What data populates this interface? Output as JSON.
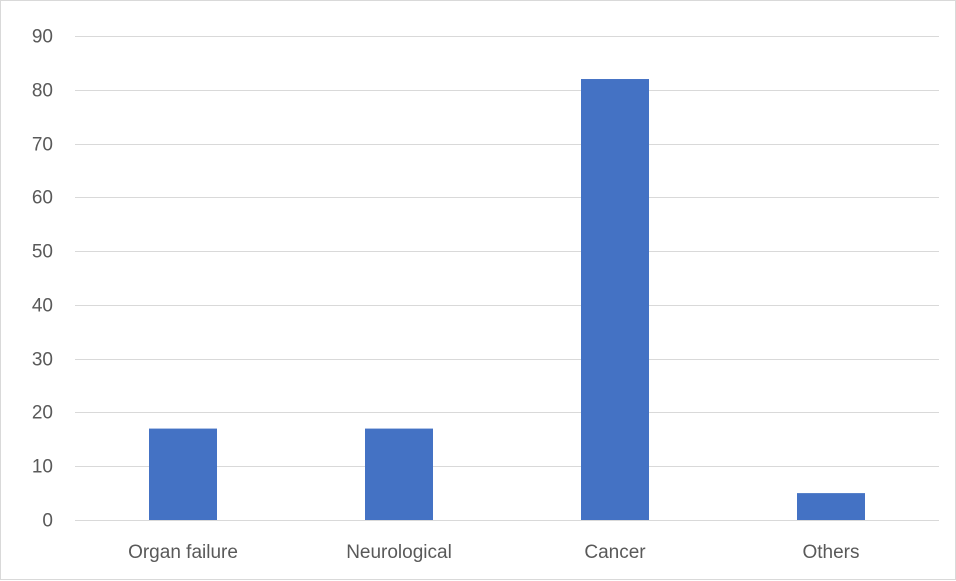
{
  "chart_data": {
    "type": "bar",
    "categories": [
      "Organ failure",
      "Neurological",
      "Cancer",
      "Others"
    ],
    "values": [
      17,
      17,
      82,
      5
    ],
    "ylim": [
      0,
      90
    ],
    "yticks": [
      0,
      10,
      20,
      30,
      40,
      50,
      60,
      70,
      80,
      90
    ],
    "ytick_labels": [
      "0",
      "10",
      "20",
      "30",
      "40",
      "50",
      "60",
      "70",
      "80",
      "90"
    ],
    "grid": true,
    "legend": "none",
    "bar_color": "#4472c4",
    "gridline_color": "#d9d9d9",
    "label_color": "#595959"
  }
}
